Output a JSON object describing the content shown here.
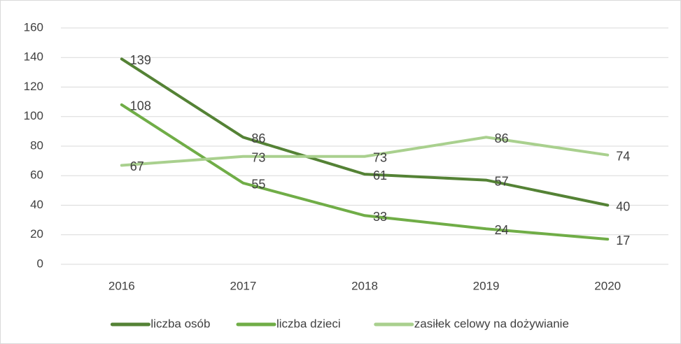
{
  "chart_data": {
    "type": "line",
    "categories": [
      "2016",
      "2017",
      "2018",
      "2019",
      "2020"
    ],
    "series": [
      {
        "name": "liczba osób",
        "color": "#548235",
        "values": [
          139,
          86,
          61,
          57,
          40
        ]
      },
      {
        "name": "liczba dzieci",
        "color": "#70ad47",
        "values": [
          108,
          55,
          33,
          24,
          17
        ]
      },
      {
        "name": "zasiłek celowy na dożywianie",
        "color": "#a9d08e",
        "values": [
          67,
          73,
          73,
          86,
          74
        ]
      }
    ],
    "ylim": [
      0,
      160
    ],
    "yticks": [
      0,
      20,
      40,
      60,
      80,
      100,
      120,
      140,
      160
    ],
    "grid": true,
    "legend": "bottom"
  }
}
